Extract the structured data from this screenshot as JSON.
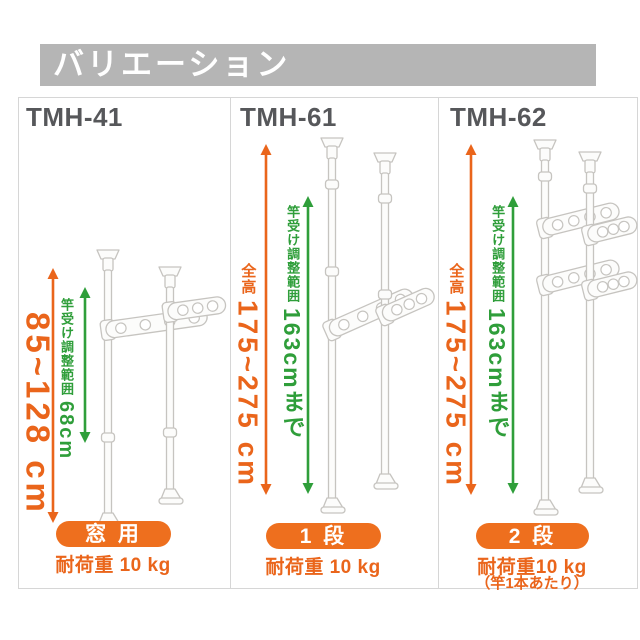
{
  "banner": {
    "title": "バリエーション"
  },
  "panels": [
    {
      "model": "TMH-41",
      "height_value": "85~128 cm",
      "adjust_label": "竿受け調整範囲",
      "adjust_value": "68cm",
      "badge": "窓 用",
      "capacity": "耐荷重 10 kg"
    },
    {
      "model": "TMH-61",
      "height_prefix": "全高",
      "height_value": "175~275 cm",
      "adjust_label": "竿受け調整範囲",
      "adjust_value": "163cmまで",
      "badge": "1 段",
      "capacity": "耐荷重 10 kg"
    },
    {
      "model": "TMH-62",
      "height_prefix": "全高",
      "height_value": "175~275 cm",
      "adjust_label": "竿受け調整範囲",
      "adjust_value": "163cmまで",
      "badge": "2 段",
      "capacity": "耐荷重10 kg",
      "capacity_note": "（竿1本あたり）"
    }
  ],
  "colors": {
    "accent_orange": "#ea651b",
    "badge_orange": "#ee6f1e",
    "accent_green": "#2f9e3a",
    "banner_gray": "#b5b5b5",
    "title_gray": "#56575a",
    "panel_border": "#d6d6d6"
  }
}
